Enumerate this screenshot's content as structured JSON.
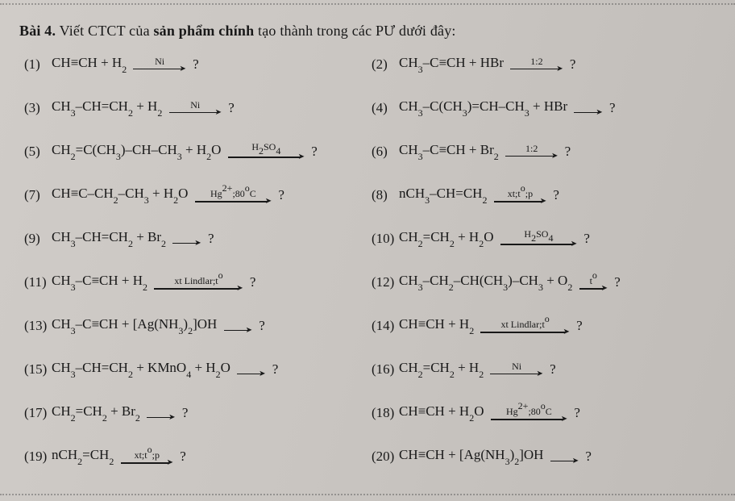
{
  "colors": {
    "bg": "#cecac6",
    "text": "#181818",
    "dots": "#555555"
  },
  "typography": {
    "family": "Times New Roman",
    "title_size_pt": 14,
    "body_size_pt": 13,
    "script_size_pt": 9
  },
  "title_bold": "Bài 4.",
  "title_bold2": "sản phẩm chính",
  "title_reg1": " Viết CTCT của ",
  "title_reg2": " tạo thành trong các PƯ dưới đây:",
  "equations": [
    {
      "n": "(1)",
      "lhs_html": "CH≡CH + H<sub>2</sub>",
      "cond_html": "Ni",
      "arrow_len": "med",
      "rhs": "?"
    },
    {
      "n": "(2)",
      "lhs_html": "CH<sub>3</sub>–C≡CH + HBr",
      "cond_html": "1:2",
      "arrow_len": "med",
      "rhs": "?"
    },
    {
      "n": "(3)",
      "lhs_html": "CH<sub>3</sub>–CH=CH<sub>2</sub> + H<sub>2</sub>",
      "cond_html": "Ni",
      "arrow_len": "med",
      "rhs": "?"
    },
    {
      "n": "(4)",
      "lhs_html": "CH<sub>3</sub>–C(CH<sub>3</sub>)=CH–CH<sub>3</sub> + HBr",
      "cond_html": "",
      "arrow_len": "short",
      "rhs": "?"
    },
    {
      "n": "(5)",
      "lhs_html": "CH<sub>2</sub>=C(CH<sub>3</sub>)–CH–CH<sub>3</sub> + H<sub>2</sub>O",
      "cond_html": "H<sub>2</sub>SO<sub>4</sub>",
      "arrow_len": "long",
      "rhs": "?"
    },
    {
      "n": "(6)",
      "lhs_html": "CH<sub>3</sub>–C≡CH + Br<sub>2</sub>",
      "cond_html": "1:2",
      "arrow_len": "med",
      "rhs": "?"
    },
    {
      "n": "(7)",
      "lhs_html": "CH≡C–CH<sub>2</sub>–CH<sub>3</sub> + H<sub>2</sub>O",
      "cond_html": "Hg<sup>2+</sup>;80<sup>o</sup>C",
      "arrow_len": "long",
      "rhs": "?"
    },
    {
      "n": "(8)",
      "lhs_html": "nCH<sub>3</sub>–CH=CH<sub>2</sub>",
      "cond_html": "xt;t<sup>o</sup>;p",
      "arrow_len": "med",
      "rhs": "?"
    },
    {
      "n": "(9)",
      "lhs_html": "CH<sub>3</sub>–CH=CH<sub>2</sub> + Br<sub>2</sub>",
      "cond_html": "",
      "arrow_len": "short",
      "rhs": "?"
    },
    {
      "n": "(10)",
      "lhs_html": "CH<sub>2</sub>=CH<sub>2</sub> + H<sub>2</sub>O",
      "cond_html": "H<sub>2</sub>SO<sub>4</sub>",
      "arrow_len": "long",
      "rhs": "?"
    },
    {
      "n": "(11)",
      "lhs_html": "CH<sub>3</sub>–C≡CH + H<sub>2</sub>",
      "cond_html": "xt Lindlar;t<sup>o</sup>",
      "arrow_len": "xlong",
      "rhs": "?"
    },
    {
      "n": "(12)",
      "lhs_html": "CH<sub>3</sub>–CH<sub>2</sub>–CH(CH<sub>3</sub>)–CH<sub>3</sub> + O<sub>2</sub>",
      "cond_html": "t<sup>o</sup>",
      "arrow_len": "short",
      "rhs": "?"
    },
    {
      "n": "(13)",
      "lhs_html": "CH<sub>3</sub>–C≡CH + [Ag(NH<sub>3</sub>)<sub>2</sub>]OH",
      "cond_html": "",
      "arrow_len": "short",
      "rhs": "?"
    },
    {
      "n": "(14)",
      "lhs_html": "CH≡CH + H<sub>2</sub>",
      "cond_html": "xt Lindlar;t<sup>o</sup>",
      "arrow_len": "xlong",
      "rhs": "?"
    },
    {
      "n": "(15)",
      "lhs_html": "CH<sub>3</sub>–CH=CH<sub>2</sub> + KMnO<sub>4</sub> + H<sub>2</sub>O",
      "cond_html": "",
      "arrow_len": "short",
      "rhs": "?"
    },
    {
      "n": "(16)",
      "lhs_html": "CH<sub>2</sub>=CH<sub>2</sub> + H<sub>2</sub>",
      "cond_html": "Ni",
      "arrow_len": "med",
      "rhs": "?"
    },
    {
      "n": "(17)",
      "lhs_html": "CH<sub>2</sub>=CH<sub>2</sub> + Br<sub>2</sub>",
      "cond_html": "",
      "arrow_len": "short",
      "rhs": "?"
    },
    {
      "n": "(18)",
      "lhs_html": "CH≡CH + H<sub>2</sub>O",
      "cond_html": "Hg<sup>2+</sup>;80<sup>o</sup>C",
      "arrow_len": "long",
      "rhs": "?"
    },
    {
      "n": "(19)",
      "lhs_html": "nCH<sub>2</sub>=CH<sub>2</sub>",
      "cond_html": "xt;t<sup>o</sup>;p",
      "arrow_len": "med",
      "rhs": "?"
    },
    {
      "n": "(20)",
      "lhs_html": "CH≡CH + [Ag(NH<sub>3</sub>)<sub>2</sub>]OH",
      "cond_html": "",
      "arrow_len": "short",
      "rhs": "?"
    }
  ]
}
